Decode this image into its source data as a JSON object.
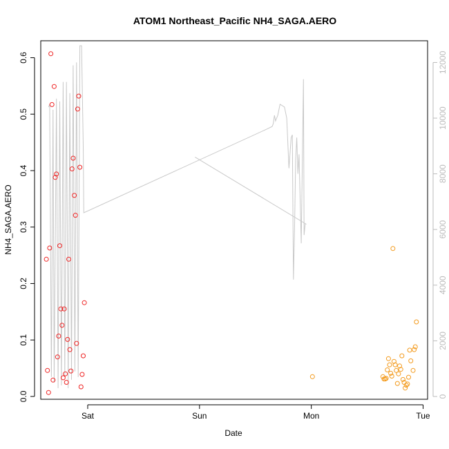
{
  "chart_data": {
    "type": "scatter",
    "title": "ATOM1 Northeast_Pacific NH4_SAGA.AERO",
    "xlabel": "Date",
    "ylabel": "NH4_SAGA.AERO",
    "x_ticks": [
      "Sat",
      "Sun",
      "Mon",
      "Tue"
    ],
    "x_tick_days": [
      1,
      2,
      3,
      4
    ],
    "xlim_days": [
      0.58,
      4.04
    ],
    "ylim": [
      -0.005,
      0.63
    ],
    "y_ticks": [
      "0.0",
      "0.1",
      "0.2",
      "0.3",
      "0.4",
      "0.5",
      "0.6"
    ],
    "y_tick_values": [
      0,
      0.1,
      0.2,
      0.3,
      0.4,
      0.5,
      0.6
    ],
    "y2lim": [
      -100,
      12780
    ],
    "y2_ticks": [
      "0",
      "2000",
      "4000",
      "6000",
      "8000",
      "10000",
      "12000"
    ],
    "y2_tick_values": [
      0,
      2000,
      4000,
      6000,
      8000,
      10000,
      12000
    ],
    "grid": false,
    "colors": {
      "series1": "#ee2222",
      "series2": "#f39a1c",
      "altitude_line": "#c8c8c8",
      "right_axis": "#bbbbbb"
    },
    "series": [
      {
        "color": "#ee2222",
        "points": [
          [
            0.63,
            0.243
          ],
          [
            0.64,
            0.046
          ],
          [
            0.65,
            0.007
          ],
          [
            0.66,
            0.263
          ],
          [
            0.67,
            0.607
          ],
          [
            0.68,
            0.517
          ],
          [
            0.69,
            0.029
          ],
          [
            0.7,
            0.549
          ],
          [
            0.71,
            0.388
          ],
          [
            0.72,
            0.394
          ],
          [
            0.73,
            0.07
          ],
          [
            0.74,
            0.107
          ],
          [
            0.75,
            0.267
          ],
          [
            0.76,
            0.155
          ],
          [
            0.77,
            0.126
          ],
          [
            0.78,
            0.033
          ],
          [
            0.79,
            0.155
          ],
          [
            0.8,
            0.04
          ],
          [
            0.81,
            0.025
          ],
          [
            0.82,
            0.101
          ],
          [
            0.83,
            0.243
          ],
          [
            0.84,
            0.083
          ],
          [
            0.85,
            0.045
          ],
          [
            0.86,
            0.403
          ],
          [
            0.87,
            0.422
          ],
          [
            0.88,
            0.356
          ],
          [
            0.89,
            0.321
          ],
          [
            0.9,
            0.094
          ],
          [
            0.91,
            0.509
          ],
          [
            0.92,
            0.532
          ],
          [
            0.93,
            0.406
          ],
          [
            0.94,
            0.017
          ],
          [
            0.95,
            0.039
          ],
          [
            0.96,
            0.072
          ],
          [
            0.97,
            0.166
          ]
        ]
      },
      {
        "color": "#f39a1c",
        "points": [
          [
            3.01,
            0.035
          ],
          [
            3.64,
            0.035
          ],
          [
            3.65,
            0.031
          ],
          [
            3.66,
            0.031
          ],
          [
            3.67,
            0.032
          ],
          [
            3.68,
            0.047
          ],
          [
            3.69,
            0.067
          ],
          [
            3.7,
            0.056
          ],
          [
            3.71,
            0.041
          ],
          [
            3.72,
            0.036
          ],
          [
            3.73,
            0.262
          ],
          [
            3.74,
            0.062
          ],
          [
            3.75,
            0.056
          ],
          [
            3.76,
            0.046
          ],
          [
            3.77,
            0.023
          ],
          [
            3.78,
            0.04
          ],
          [
            3.79,
            0.054
          ],
          [
            3.8,
            0.048
          ],
          [
            3.81,
            0.072
          ],
          [
            3.82,
            0.03
          ],
          [
            3.83,
            0.025
          ],
          [
            3.84,
            0.015
          ],
          [
            3.85,
            0.02
          ],
          [
            3.86,
            0.022
          ],
          [
            3.87,
            0.034
          ],
          [
            3.88,
            0.082
          ],
          [
            3.89,
            0.063
          ],
          [
            3.91,
            0.046
          ],
          [
            3.92,
            0.083
          ],
          [
            3.93,
            0.088
          ],
          [
            3.94,
            0.132
          ]
        ]
      }
    ],
    "altitude_line": [
      [
        0.65,
        10400
      ],
      [
        0.66,
        10500
      ],
      [
        0.675,
        700
      ],
      [
        0.69,
        10300
      ],
      [
        0.7,
        500
      ],
      [
        0.72,
        10700
      ],
      [
        0.735,
        300
      ],
      [
        0.75,
        10600
      ],
      [
        0.765,
        400
      ],
      [
        0.78,
        11300
      ],
      [
        0.795,
        700
      ],
      [
        0.81,
        11300
      ],
      [
        0.825,
        300
      ],
      [
        0.84,
        10900
      ],
      [
        0.855,
        600
      ],
      [
        0.87,
        11900
      ],
      [
        0.885,
        900
      ],
      [
        0.9,
        12000
      ],
      [
        0.915,
        700
      ],
      [
        0.93,
        12600
      ],
      [
        0.945,
        12600
      ],
      [
        0.96,
        9000
      ],
      [
        0.965,
        6600
      ],
      [
        2.6,
        9600
      ],
      [
        2.65,
        9700
      ],
      [
        2.66,
        9800
      ],
      [
        2.67,
        10100
      ],
      [
        2.68,
        9900
      ],
      [
        2.7,
        10100
      ],
      [
        2.72,
        10500
      ],
      [
        2.76,
        10400
      ],
      [
        2.78,
        10000
      ],
      [
        2.8,
        8200
      ],
      [
        2.82,
        9300
      ],
      [
        2.83,
        9400
      ],
      [
        2.84,
        4200
      ],
      [
        2.85,
        6000
      ],
      [
        2.86,
        8500
      ],
      [
        2.87,
        9300
      ],
      [
        2.88,
        8000
      ],
      [
        2.89,
        8700
      ],
      [
        2.91,
        5500
      ],
      [
        2.93,
        11400
      ],
      [
        2.935,
        5800
      ],
      [
        2.945,
        6200
      ],
      [
        2.95,
        6200
      ],
      [
        1.96,
        8600
      ]
    ]
  }
}
